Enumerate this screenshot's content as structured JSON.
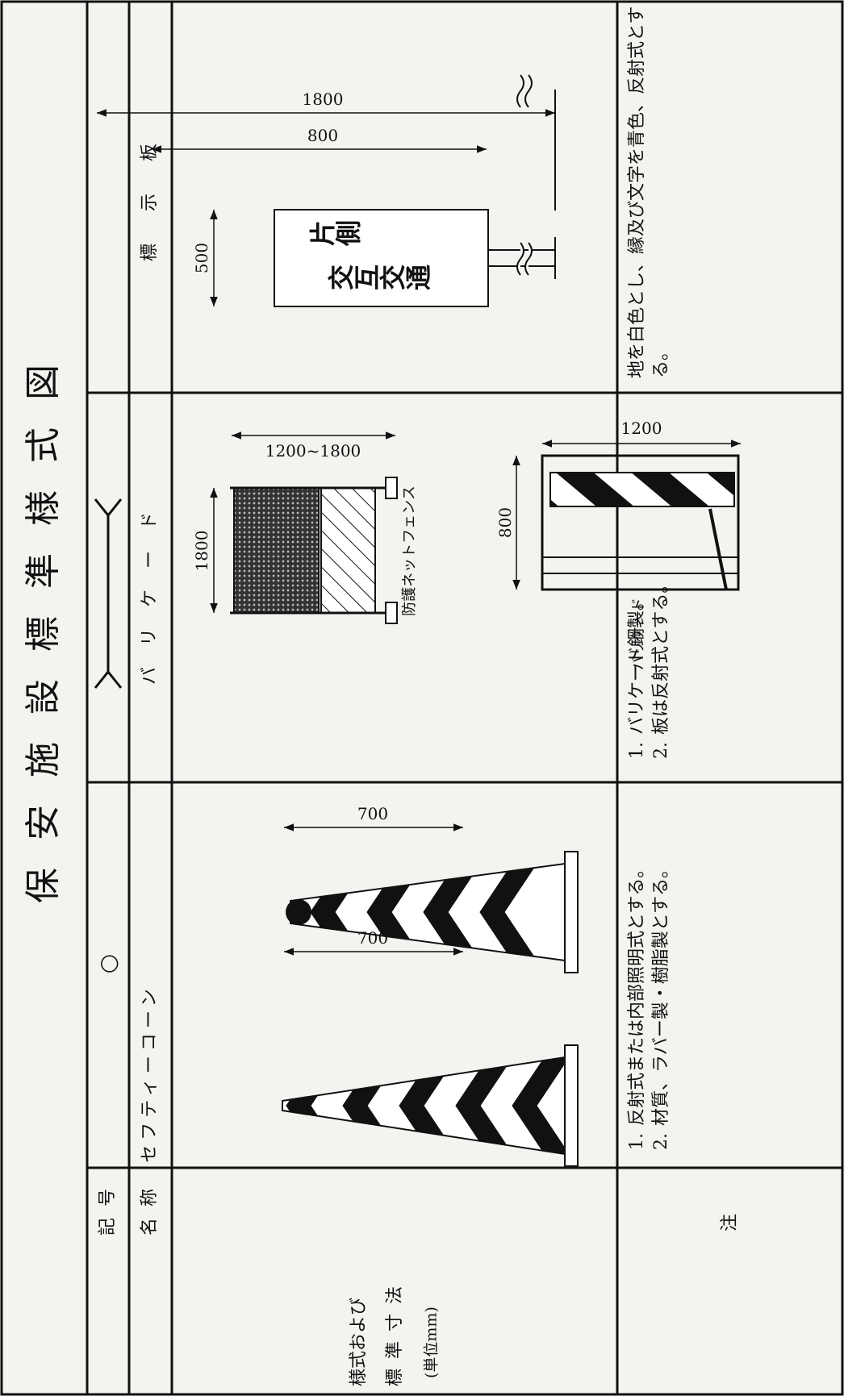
{
  "header": {
    "title": "保安施設標準様式図"
  },
  "row_labels": {
    "symbol": "記号",
    "name": "名称",
    "style": [
      "様式および",
      "標準寸法",
      "(単位mm)"
    ],
    "notes": "注"
  },
  "columns": [
    {
      "symbol": "○",
      "name": "セフティーコーン",
      "dimensions": [
        "700",
        "700"
      ],
      "notes": [
        {
          "number": "1.",
          "text": "反射式または内部照明式とする。"
        },
        {
          "number": "2.",
          "text": "材質、ラバー製・樹脂製とする。"
        }
      ]
    },
    {
      "name": "バリケード",
      "labels": {
        "fence_width": "1800",
        "fence_height": "1200~1800",
        "fence": "防護ネットフェンス",
        "barricade_height": "1200",
        "barricade_width": "800",
        "barricade": "バリケード"
      },
      "notes": [
        {
          "number": "1.",
          "text": "バリケード鋼製。"
        },
        {
          "number": "2.",
          "text": "板は反射式とする。"
        }
      ]
    },
    {
      "name": "標示板",
      "labels": {
        "width": "500",
        "sign_line1": "片側",
        "sign_line2": "交互交通",
        "total_height": "1800",
        "clearance": "800"
      },
      "notes": [
        {
          "text": "地を白色とし、縁及び文字を青色、反射式とする。"
        }
      ]
    }
  ]
}
